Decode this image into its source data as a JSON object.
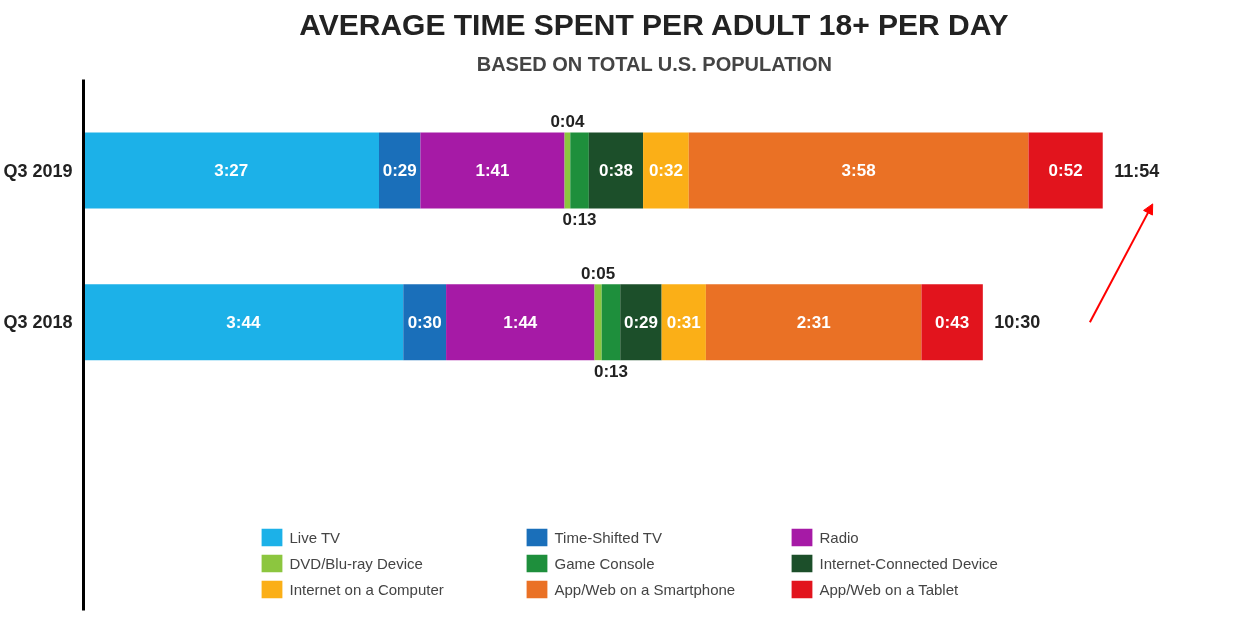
{
  "chart_data": {
    "type": "bar",
    "orientation": "horizontal",
    "stacked": true,
    "title": "AVERAGE TIME SPENT PER ADULT 18+ PER DAY",
    "subtitle": "BASED ON TOTAL U.S. POPULATION",
    "categories": [
      "Q3 2019",
      "Q3 2018"
    ],
    "series": [
      {
        "name": "Live TV",
        "color": "#1cb1e8",
        "values": [
          207,
          224
        ],
        "value_labels": [
          "3:27",
          "3:44"
        ]
      },
      {
        "name": "Time-Shifted TV",
        "color": "#1a6fba",
        "values": [
          29,
          30
        ],
        "value_labels": [
          "0:29",
          "0:30"
        ]
      },
      {
        "name": "Radio",
        "color": "#a61aa6",
        "values": [
          101,
          104
        ],
        "value_labels": [
          "1:41",
          "1:44"
        ]
      },
      {
        "name": "DVD/Blu-ray Device",
        "color": "#8cc63f",
        "values": [
          4,
          5
        ],
        "value_labels": [
          "0:04",
          "0:05"
        ]
      },
      {
        "name": "Game Console",
        "color": "#1e8f3c",
        "values": [
          13,
          13
        ],
        "value_labels": [
          "0:13",
          "0:13"
        ]
      },
      {
        "name": "Internet-Connected Device",
        "color": "#1c4f2a",
        "values": [
          38,
          29
        ],
        "value_labels": [
          "0:38",
          "0:29"
        ]
      },
      {
        "name": "Internet on a Computer",
        "color": "#fbaf17",
        "values": [
          32,
          31
        ],
        "value_labels": [
          "0:32",
          "0:31"
        ]
      },
      {
        "name": "App/Web on a Smartphone",
        "color": "#ea7125",
        "values": [
          238,
          151
        ],
        "value_labels": [
          "3:58",
          "2:31"
        ]
      },
      {
        "name": "App/Web on a Tablet",
        "color": "#e2141d",
        "values": [
          52,
          43
        ],
        "value_labels": [
          "0:52",
          "0:43"
        ]
      }
    ],
    "totals": [
      "11:54",
      "10:30"
    ],
    "legend": "bottom"
  }
}
